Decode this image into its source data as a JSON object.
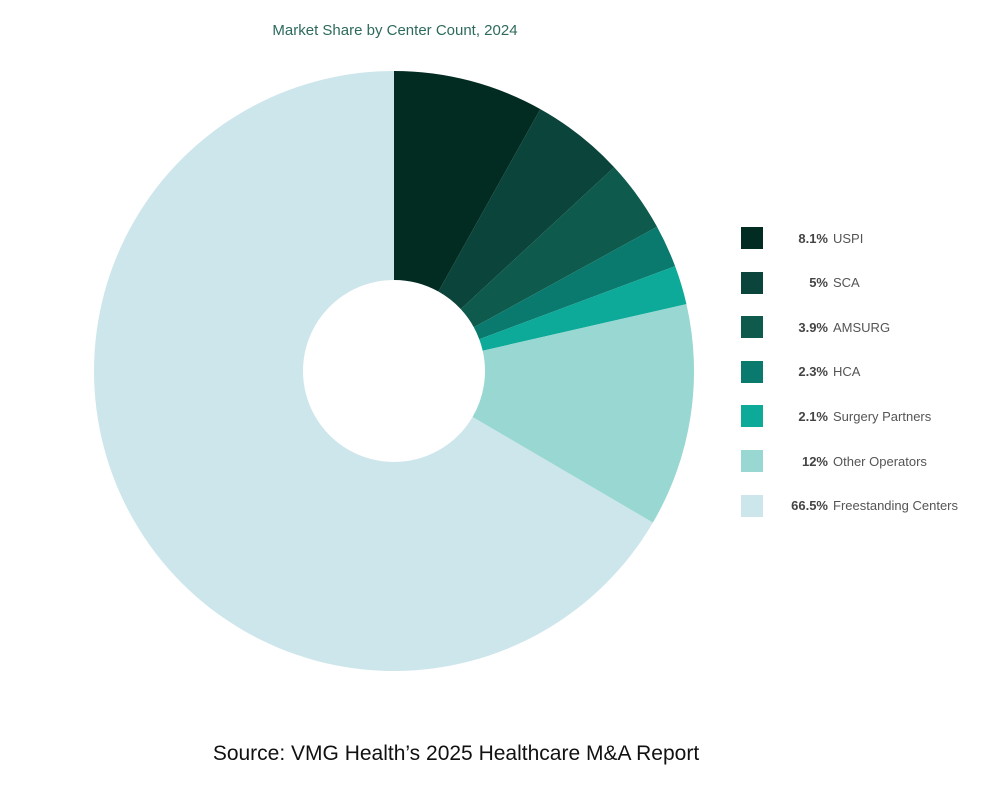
{
  "chart_data": {
    "type": "pie",
    "subtype": "donut",
    "title": "Market Share by Center Count, 2024",
    "legend_position": "right",
    "slices": [
      {
        "label": "USPI",
        "value": 8.1,
        "display": "8.1%",
        "color": "#022b22"
      },
      {
        "label": "SCA",
        "value": 5,
        "display": "5%",
        "color": "#0a443b"
      },
      {
        "label": "AMSURG",
        "value": 3.9,
        "display": "3.9%",
        "color": "#0e5a4c"
      },
      {
        "label": "HCA",
        "value": 2.3,
        "display": "2.3%",
        "color": "#0a7a6e"
      },
      {
        "label": "Surgery Partners",
        "value": 2.1,
        "display": "2.1%",
        "color": "#0eaa99"
      },
      {
        "label": "Other Operators",
        "value": 12,
        "display": "12%",
        "color": "#98d7d2"
      },
      {
        "label": "Freestanding Centers",
        "value": 66.5,
        "display": "66.5%",
        "color": "#cde6eb"
      }
    ]
  },
  "source": "Source: VMG Health’s 2025 Healthcare M&A Report"
}
